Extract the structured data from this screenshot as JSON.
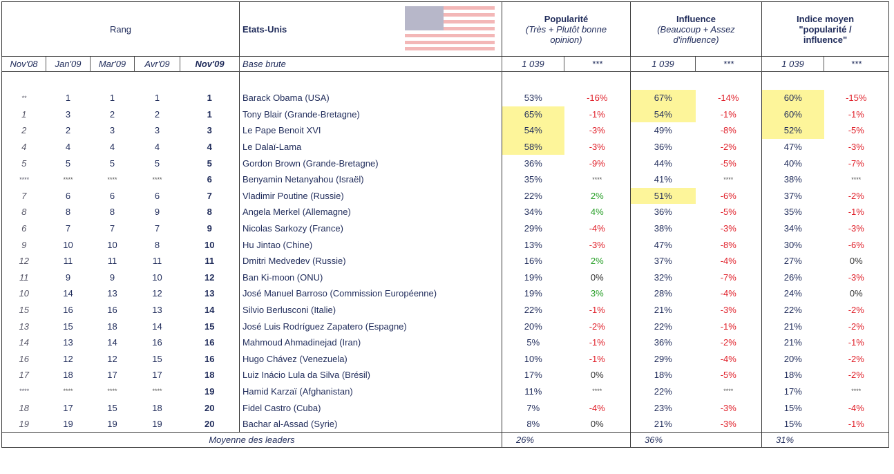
{
  "header": {
    "rang": "Rang",
    "country": "Etats-Unis",
    "popularite": {
      "title": "Popularité",
      "subtitle": "(Très + Plutôt bonne opinion)"
    },
    "influence": {
      "title": "Influence",
      "subtitle": "(Beaucoup + Assez d'influence)"
    },
    "indice": {
      "title": "Indice moyen \"popularité / influence\""
    }
  },
  "subheader": [
    "Nov'08",
    "Jan'09",
    "Mar'09",
    "Avr'09",
    "Nov'09",
    "Base brute",
    "1 039",
    "***",
    "1 039",
    "***",
    "1 039",
    "***"
  ],
  "table": {
    "rows": [
      [
        "**",
        "1",
        "1",
        "1",
        "1",
        "Barack Obama (USA)",
        "53%",
        "-16%",
        "67%",
        "-14%",
        "60%",
        "-15%"
      ],
      [
        "1",
        "3",
        "2",
        "2",
        "1",
        "Tony Blair (Grande-Bretagne)",
        "65%",
        "-1%",
        "54%",
        "-1%",
        "60%",
        "-1%"
      ],
      [
        "2",
        "2",
        "3",
        "3",
        "3",
        "Le Pape Benoit XVI",
        "54%",
        "-3%",
        "49%",
        "-8%",
        "52%",
        "-5%"
      ],
      [
        "4",
        "4",
        "4",
        "4",
        "4",
        "Le Dalaï-Lama",
        "58%",
        "-3%",
        "36%",
        "-2%",
        "47%",
        "-3%"
      ],
      [
        "5",
        "5",
        "5",
        "5",
        "5",
        "Gordon Brown (Grande-Bretagne)",
        "36%",
        "-9%",
        "44%",
        "-5%",
        "40%",
        "-7%"
      ],
      [
        "****",
        "****",
        "****",
        "****",
        "6",
        "Benyamin Netanyahou (Israël)",
        "35%",
        "****",
        "41%",
        "****",
        "38%",
        "****"
      ],
      [
        "7",
        "6",
        "6",
        "6",
        "7",
        "Vladimir Poutine (Russie)",
        "22%",
        "2%",
        "51%",
        "-6%",
        "37%",
        "-2%"
      ],
      [
        "8",
        "8",
        "8",
        "9",
        "8",
        "Angela Merkel (Allemagne)",
        "34%",
        "4%",
        "36%",
        "-5%",
        "35%",
        "-1%"
      ],
      [
        "6",
        "7",
        "7",
        "7",
        "9",
        "Nicolas Sarkozy (France)",
        "29%",
        "-4%",
        "38%",
        "-3%",
        "34%",
        "-3%"
      ],
      [
        "9",
        "10",
        "10",
        "8",
        "10",
        "Hu Jintao (Chine)",
        "13%",
        "-3%",
        "47%",
        "-8%",
        "30%",
        "-6%"
      ],
      [
        "12",
        "11",
        "11",
        "11",
        "11",
        "Dmitri Medvedev (Russie)",
        "16%",
        "2%",
        "37%",
        "-4%",
        "27%",
        "0%"
      ],
      [
        "11",
        "9",
        "9",
        "10",
        "12",
        "Ban Ki-moon (ONU)",
        "19%",
        "0%",
        "32%",
        "-7%",
        "26%",
        "-3%"
      ],
      [
        "10",
        "14",
        "13",
        "12",
        "13",
        "José Manuel Barroso (Commission Européenne)",
        "19%",
        "3%",
        "28%",
        "-4%",
        "24%",
        "0%"
      ],
      [
        "15",
        "16",
        "16",
        "13",
        "14",
        "Silvio Berlusconi (Italie)",
        "22%",
        "-1%",
        "21%",
        "-3%",
        "22%",
        "-2%"
      ],
      [
        "13",
        "15",
        "18",
        "14",
        "15",
        "José Luis Rodríguez Zapatero (Espagne)",
        "20%",
        "-2%",
        "22%",
        "-1%",
        "21%",
        "-2%"
      ],
      [
        "14",
        "13",
        "14",
        "16",
        "16",
        "Mahmoud Ahmadinejad (Iran)",
        "5%",
        "-1%",
        "36%",
        "-2%",
        "21%",
        "-1%"
      ],
      [
        "16",
        "12",
        "12",
        "15",
        "16",
        "Hugo Chávez (Venezuela)",
        "10%",
        "-1%",
        "29%",
        "-4%",
        "20%",
        "-2%"
      ],
      [
        "17",
        "18",
        "17",
        "17",
        "18",
        "Luiz Inácio Lula da Silva (Brésil)",
        "17%",
        "0%",
        "18%",
        "-5%",
        "18%",
        "-2%"
      ],
      [
        "****",
        "****",
        "****",
        "****",
        "19",
        "Hamid Karzaï (Afghanistan)",
        "11%",
        "****",
        "22%",
        "****",
        "17%",
        "****"
      ],
      [
        "18",
        "17",
        "15",
        "18",
        "20",
        "Fidel Castro (Cuba)",
        "7%",
        "-4%",
        "23%",
        "-3%",
        "15%",
        "-4%"
      ],
      [
        "19",
        "19",
        "19",
        "19",
        "20",
        "Bachar al-Assad (Syrie)",
        "8%",
        "0%",
        "21%",
        "-3%",
        "15%",
        "-1%"
      ]
    ],
    "highlights": [
      [
        0,
        8
      ],
      [
        0,
        10
      ],
      [
        1,
        6
      ],
      [
        1,
        8
      ],
      [
        1,
        10
      ],
      [
        2,
        6
      ],
      [
        2,
        10
      ],
      [
        3,
        6
      ],
      [
        6,
        8
      ]
    ]
  },
  "footer": {
    "label": "Moyenne des leaders",
    "popularite": "26%",
    "influence": "36%",
    "indice": "31%"
  }
}
